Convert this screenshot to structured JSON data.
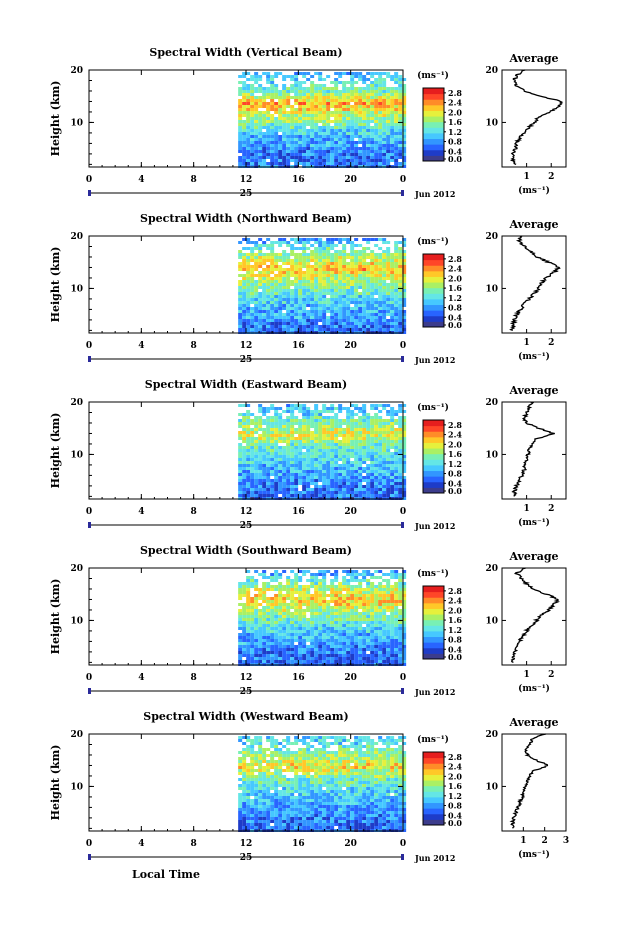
{
  "figure": {
    "xlabel": "Local Time",
    "date_label": "Jun 2012",
    "day_label": "25",
    "ylabel": "Height (km)",
    "colorbar_unit": "(ms⁻¹)",
    "avg_title": "Average",
    "avg_xlabel": "(ms⁻¹)"
  },
  "colors": {
    "scale": [
      "#3c3c8c",
      "#1e3cc8",
      "#2864ff",
      "#3296ff",
      "#46c8ff",
      "#64e6e6",
      "#78f0b4",
      "#aaf064",
      "#e6f03c",
      "#ffc828",
      "#ff8c28",
      "#ff4628",
      "#e61e1e"
    ],
    "background": "#ffffff"
  },
  "chart_data": [
    {
      "type": "heatmap",
      "title": "Spectral Width (Vertical Beam)",
      "x_ticks": [
        "0",
        "4",
        "8",
        "12",
        "16",
        "20",
        "0"
      ],
      "x_range_hours": [
        0,
        24
      ],
      "data_start_hour": 11.4,
      "y_ticks": [
        "20",
        "10"
      ],
      "y_range_km": [
        1.5,
        20
      ],
      "colorbar_ticks": [
        "2.8",
        "2.4",
        "2.0",
        "1.6",
        "1.2",
        "0.8",
        "0.4",
        "0.0"
      ],
      "colorbar_range": [
        0,
        3.0
      ],
      "profile_heights": [
        2,
        4,
        6,
        8,
        10,
        12,
        14,
        16,
        18,
        20
      ],
      "profile_strength": [
        0.6,
        0.6,
        0.8,
        1.0,
        1.5,
        1.9,
        2.4,
        1.5,
        1.2,
        0.8
      ],
      "avg_x_ticks": [
        "1",
        "2"
      ],
      "avg_xlim": [
        0,
        2.6
      ],
      "avg_profile": {
        "height": [
          2,
          3,
          4,
          5,
          6,
          7,
          8,
          9,
          10,
          11,
          12,
          13,
          14,
          15,
          16,
          17,
          18,
          19,
          20
        ],
        "width": [
          0.5,
          0.45,
          0.45,
          0.55,
          0.6,
          0.7,
          0.9,
          1.1,
          1.3,
          1.5,
          1.9,
          2.3,
          2.4,
          1.6,
          0.9,
          0.6,
          0.5,
          0.6,
          0.9
        ]
      }
    },
    {
      "type": "heatmap",
      "title": "Spectral Width (Northward Beam)",
      "x_ticks": [
        "0",
        "4",
        "8",
        "12",
        "16",
        "20",
        "0"
      ],
      "x_range_hours": [
        0,
        24
      ],
      "data_start_hour": 11.4,
      "y_ticks": [
        "20",
        "10"
      ],
      "y_range_km": [
        1.5,
        20
      ],
      "colorbar_ticks": [
        "2.8",
        "2.4",
        "2.0",
        "1.6",
        "1.2",
        "0.8",
        "0.4",
        "0.0"
      ],
      "colorbar_range": [
        0,
        3.0
      ],
      "profile_heights": [
        2,
        4,
        6,
        8,
        10,
        12,
        14,
        16,
        18,
        20
      ],
      "profile_strength": [
        0.5,
        0.7,
        0.9,
        1.1,
        1.4,
        1.8,
        2.3,
        1.8,
        1.3,
        0.7
      ],
      "avg_x_ticks": [
        "1",
        "2"
      ],
      "avg_xlim": [
        0,
        2.6
      ],
      "avg_profile": {
        "height": [
          2,
          3,
          4,
          5,
          6,
          7,
          8,
          9,
          10,
          11,
          12,
          13,
          14,
          15,
          16,
          17,
          18,
          19,
          20
        ],
        "width": [
          0.4,
          0.45,
          0.5,
          0.6,
          0.75,
          0.9,
          1.1,
          1.3,
          1.5,
          1.6,
          1.8,
          2.1,
          2.3,
          1.9,
          1.4,
          1.2,
          0.9,
          0.7,
          0.8
        ]
      }
    },
    {
      "type": "heatmap",
      "title": "Spectral Width (Eastward Beam)",
      "x_ticks": [
        "0",
        "4",
        "8",
        "12",
        "16",
        "20",
        "0"
      ],
      "x_range_hours": [
        0,
        24
      ],
      "data_start_hour": 11.4,
      "y_ticks": [
        "20",
        "10"
      ],
      "y_range_km": [
        1.5,
        20
      ],
      "colorbar_ticks": [
        "2.8",
        "2.4",
        "2.0",
        "1.6",
        "1.2",
        "0.8",
        "0.4",
        "0.0"
      ],
      "colorbar_range": [
        0,
        3.0
      ],
      "profile_heights": [
        2,
        4,
        6,
        8,
        10,
        12,
        14,
        16,
        18,
        20
      ],
      "profile_strength": [
        0.5,
        0.6,
        0.8,
        1.0,
        1.2,
        1.4,
        2.0,
        1.6,
        1.1,
        0.9
      ],
      "avg_x_ticks": [
        "1",
        "2"
      ],
      "avg_xlim": [
        0,
        2.6
      ],
      "avg_profile": {
        "height": [
          2,
          3,
          4,
          5,
          6,
          7,
          8,
          9,
          10,
          11,
          12,
          13,
          14,
          15,
          16,
          17,
          18,
          19,
          20
        ],
        "width": [
          0.5,
          0.5,
          0.6,
          0.7,
          0.8,
          0.9,
          0.95,
          1.0,
          1.05,
          1.1,
          1.2,
          1.4,
          2.1,
          1.5,
          1.0,
          0.9,
          1.0,
          1.1,
          1.2
        ]
      }
    },
    {
      "type": "heatmap",
      "title": "Spectral Width (Southward Beam)",
      "x_ticks": [
        "0",
        "4",
        "8",
        "12",
        "16",
        "20",
        "0"
      ],
      "x_range_hours": [
        0,
        24
      ],
      "data_start_hour": 11.4,
      "y_ticks": [
        "20",
        "10"
      ],
      "y_range_km": [
        1.5,
        20
      ],
      "colorbar_ticks": [
        "2.8",
        "2.4",
        "2.0",
        "1.6",
        "1.2",
        "0.8",
        "0.4",
        "0.0"
      ],
      "colorbar_range": [
        0,
        3.0
      ],
      "profile_heights": [
        2,
        4,
        6,
        8,
        10,
        12,
        14,
        16,
        18,
        20
      ],
      "profile_strength": [
        0.5,
        0.6,
        0.8,
        1.0,
        1.3,
        1.7,
        2.2,
        1.9,
        1.3,
        0.7
      ],
      "avg_x_ticks": [
        "1",
        "2"
      ],
      "avg_xlim": [
        0,
        2.6
      ],
      "avg_profile": {
        "height": [
          2,
          3,
          4,
          5,
          6,
          7,
          8,
          9,
          10,
          11,
          12,
          13,
          14,
          15,
          16,
          17,
          18,
          19,
          20
        ],
        "width": [
          0.4,
          0.45,
          0.5,
          0.6,
          0.7,
          0.85,
          1.0,
          1.2,
          1.4,
          1.6,
          1.9,
          2.1,
          2.3,
          1.8,
          1.3,
          1.0,
          0.8,
          0.6,
          0.9
        ]
      }
    },
    {
      "type": "heatmap",
      "title": "Spectral Width (Westward Beam)",
      "x_ticks": [
        "0",
        "4",
        "8",
        "12",
        "16",
        "20",
        "0"
      ],
      "x_range_hours": [
        0,
        24
      ],
      "data_start_hour": 11.4,
      "y_ticks": [
        "20",
        "10"
      ],
      "y_range_km": [
        1.5,
        20
      ],
      "colorbar_ticks": [
        "2.8",
        "2.4",
        "2.0",
        "1.6",
        "1.2",
        "0.8",
        "0.4",
        "0.0"
      ],
      "colorbar_range": [
        0,
        3.0
      ],
      "profile_heights": [
        2,
        4,
        6,
        8,
        10,
        12,
        14,
        16,
        18,
        20
      ],
      "profile_strength": [
        0.5,
        0.6,
        0.8,
        1.0,
        1.2,
        1.5,
        2.1,
        1.7,
        1.3,
        1.0
      ],
      "avg_x_ticks": [
        "1",
        "2",
        "3"
      ],
      "avg_xlim": [
        0,
        3.0
      ],
      "avg_profile": {
        "height": [
          2,
          3,
          4,
          5,
          6,
          7,
          8,
          9,
          10,
          11,
          12,
          13,
          14,
          15,
          16,
          17,
          18,
          19,
          20
        ],
        "width": [
          0.5,
          0.5,
          0.55,
          0.65,
          0.75,
          0.85,
          0.95,
          1.0,
          1.1,
          1.2,
          1.3,
          1.5,
          2.2,
          1.6,
          1.2,
          1.1,
          1.3,
          1.4,
          2.0
        ]
      }
    }
  ]
}
